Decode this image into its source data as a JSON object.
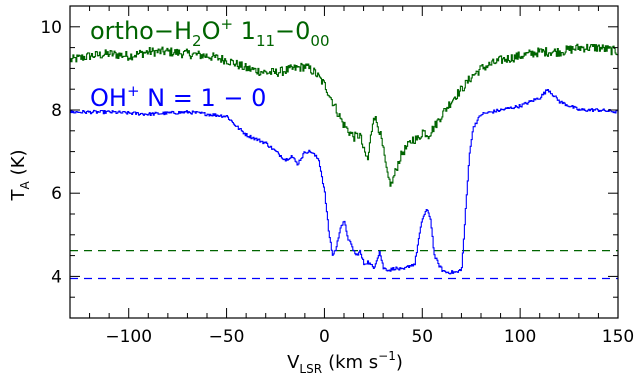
{
  "chart_data": {
    "type": "line",
    "xlabel": {
      "main": "V",
      "sub": "LSR",
      "units": "(km s",
      "sup": "−1",
      "close": ")"
    },
    "ylabel": {
      "main": "T",
      "sub": "A",
      "units": "(K)"
    },
    "xlim": [
      -130,
      150
    ],
    "ylim": [
      3,
      10.5
    ],
    "xticks": [
      -100,
      -50,
      0,
      50,
      100,
      150
    ],
    "xtick_labels": [
      "−100",
      "−50",
      "0",
      "50",
      "100",
      "150"
    ],
    "yticks": [
      4,
      6,
      8,
      10
    ],
    "ytick_labels": [
      "4",
      "6",
      "8",
      "10"
    ],
    "grid": false,
    "series": [
      {
        "name": "ortho-H2O+ 1_11-0_00",
        "color": "#006400",
        "label_parts": {
          "a": "ortho−H",
          "b": "2",
          "c": "O",
          "d": "+",
          "e": " 1",
          "f": "11",
          "g": "−0",
          "h": "00"
        },
        "x": [
          -130,
          -120,
          -110,
          -100,
          -90,
          -80,
          -70,
          -60,
          -50,
          -45,
          -40,
          -35,
          -30,
          -25,
          -20,
          -15,
          -10,
          -5,
          0,
          3,
          6,
          9,
          12,
          15,
          18,
          20,
          22,
          25,
          28,
          30,
          32,
          34,
          36,
          38,
          40,
          42,
          45,
          48,
          50,
          53,
          56,
          60,
          63,
          66,
          70,
          75,
          80,
          85,
          90,
          100,
          110,
          115,
          120,
          130,
          140,
          150
        ],
        "y": [
          9.2,
          9.3,
          9.35,
          9.3,
          9.4,
          9.4,
          9.35,
          9.3,
          9.2,
          9.1,
          9.0,
          8.95,
          8.9,
          8.9,
          8.95,
          9.0,
          9.05,
          8.9,
          8.6,
          8.3,
          8.0,
          7.7,
          7.5,
          7.35,
          7.4,
          7.0,
          6.8,
          7.9,
          7.5,
          7.0,
          6.4,
          6.2,
          6.5,
          6.8,
          7.0,
          7.1,
          7.3,
          7.3,
          7.5,
          7.4,
          7.6,
          7.9,
          8.1,
          8.3,
          8.5,
          8.8,
          9.0,
          9.1,
          9.2,
          9.3,
          9.4,
          9.4,
          9.4,
          9.5,
          9.5,
          9.4
        ]
      },
      {
        "name": "OH+ N = 1 - 0",
        "color": "#0000ff",
        "label_parts": {
          "a": "OH",
          "b": "+",
          "c": " N = 1 − 0"
        },
        "x": [
          -130,
          -110,
          -90,
          -70,
          -60,
          -50,
          -45,
          -40,
          -35,
          -30,
          -25,
          -20,
          -17,
          -14,
          -10,
          -7,
          -3,
          0,
          2,
          4,
          6,
          8,
          10,
          12,
          14,
          16,
          18,
          20,
          22,
          25,
          28,
          30,
          33,
          36,
          40,
          43,
          46,
          48,
          50,
          52,
          54,
          56,
          58,
          60,
          62,
          65,
          68,
          70,
          72,
          74,
          76,
          80,
          90,
          100,
          110,
          114,
          120,
          130,
          140,
          150
        ],
        "y": [
          7.95,
          7.95,
          7.9,
          7.95,
          7.9,
          7.85,
          7.6,
          7.4,
          7.3,
          7.2,
          7.0,
          6.8,
          6.9,
          6.7,
          7.0,
          7.0,
          6.8,
          6.0,
          5.1,
          4.5,
          4.7,
          5.2,
          5.3,
          4.9,
          4.7,
          4.5,
          4.6,
          4.3,
          4.35,
          4.2,
          4.6,
          4.2,
          4.15,
          4.2,
          4.15,
          4.25,
          4.3,
          4.9,
          5.4,
          5.6,
          5.4,
          4.5,
          4.3,
          4.15,
          4.1,
          4.1,
          4.1,
          4.2,
          5.6,
          7.0,
          7.6,
          7.9,
          8.0,
          8.1,
          8.3,
          8.5,
          8.2,
          8.0,
          8.0,
          7.95
        ]
      }
    ],
    "reference_lines": [
      {
        "y": 4.62,
        "color": "#006400",
        "style": "dashed"
      },
      {
        "y": 3.95,
        "color": "#0000ff",
        "style": "dashed"
      }
    ]
  }
}
